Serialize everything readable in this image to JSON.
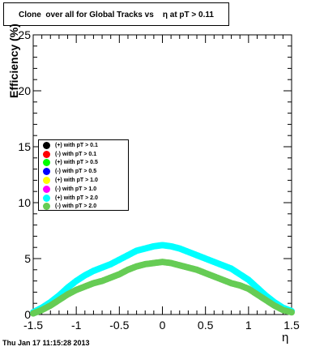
{
  "title": "Clone  over all for Global Tracks vs    η at pT > 0.11",
  "timestamp": "Thu Jan 17 11:15:28 2013",
  "chart_data": {
    "type": "scatter",
    "title": "Clone  over all for Global Tracks vs    η at pT > 0.11",
    "xlabel": "η",
    "ylabel": "Efficiency (%)",
    "xlim": [
      -1.5,
      1.5
    ],
    "ylim": [
      0,
      25
    ],
    "x_ticks": [
      "-1.5",
      "-1",
      "-0.5",
      "0",
      "0.5",
      "1",
      "1.5"
    ],
    "y_ticks": [
      "0",
      "5",
      "10",
      "15",
      "20",
      "25"
    ],
    "legend_position": "left",
    "series": [
      {
        "name": "(+) with pT > 0.1",
        "color": "#000000",
        "x": [],
        "y": []
      },
      {
        "name": "(-) with pT > 0.1",
        "color": "#ff0000",
        "x": [],
        "y": []
      },
      {
        "name": "(+) with pT > 0.5",
        "color": "#00ff00",
        "x": [],
        "y": []
      },
      {
        "name": "(-) with pT > 0.5",
        "color": "#0000ff",
        "x": [],
        "y": []
      },
      {
        "name": "(+) with pT > 1.0",
        "color": "#ffff00",
        "x": [],
        "y": []
      },
      {
        "name": "(-) with pT > 1.0",
        "color": "#ff00ff",
        "x": [],
        "y": []
      },
      {
        "name": "(+) with pT > 2.0",
        "color": "#00ffff",
        "x": [
          -1.5,
          -1.4,
          -1.3,
          -1.2,
          -1.1,
          -1.0,
          -0.9,
          -0.8,
          -0.7,
          -0.6,
          -0.5,
          -0.4,
          -0.3,
          -0.2,
          -0.1,
          0.0,
          0.1,
          0.2,
          0.3,
          0.4,
          0.5,
          0.6,
          0.7,
          0.8,
          0.9,
          1.0,
          1.1,
          1.2,
          1.3,
          1.4,
          1.5
        ],
        "y": [
          0.2,
          0.6,
          1.1,
          1.7,
          2.4,
          3.0,
          3.5,
          3.9,
          4.2,
          4.5,
          4.9,
          5.3,
          5.7,
          5.9,
          6.1,
          6.2,
          6.1,
          5.9,
          5.6,
          5.3,
          5.0,
          4.7,
          4.4,
          4.1,
          3.6,
          3.1,
          2.4,
          1.7,
          1.1,
          0.6,
          0.3
        ]
      },
      {
        "name": "(-) with pT > 2.0",
        "color": "#66cc55",
        "x": [
          -1.5,
          -1.4,
          -1.3,
          -1.2,
          -1.1,
          -1.0,
          -0.9,
          -0.8,
          -0.7,
          -0.6,
          -0.5,
          -0.4,
          -0.3,
          -0.2,
          -0.1,
          0.0,
          0.1,
          0.2,
          0.3,
          0.4,
          0.5,
          0.6,
          0.7,
          0.8,
          0.9,
          1.0,
          1.1,
          1.2,
          1.3,
          1.4,
          1.5
        ],
        "y": [
          0.1,
          0.4,
          0.8,
          1.3,
          1.8,
          2.2,
          2.5,
          2.8,
          3.0,
          3.3,
          3.6,
          4.0,
          4.3,
          4.5,
          4.6,
          4.7,
          4.6,
          4.4,
          4.2,
          4.0,
          3.7,
          3.4,
          3.1,
          2.8,
          2.6,
          2.3,
          1.8,
          1.3,
          0.8,
          0.4,
          0.2
        ]
      }
    ]
  }
}
